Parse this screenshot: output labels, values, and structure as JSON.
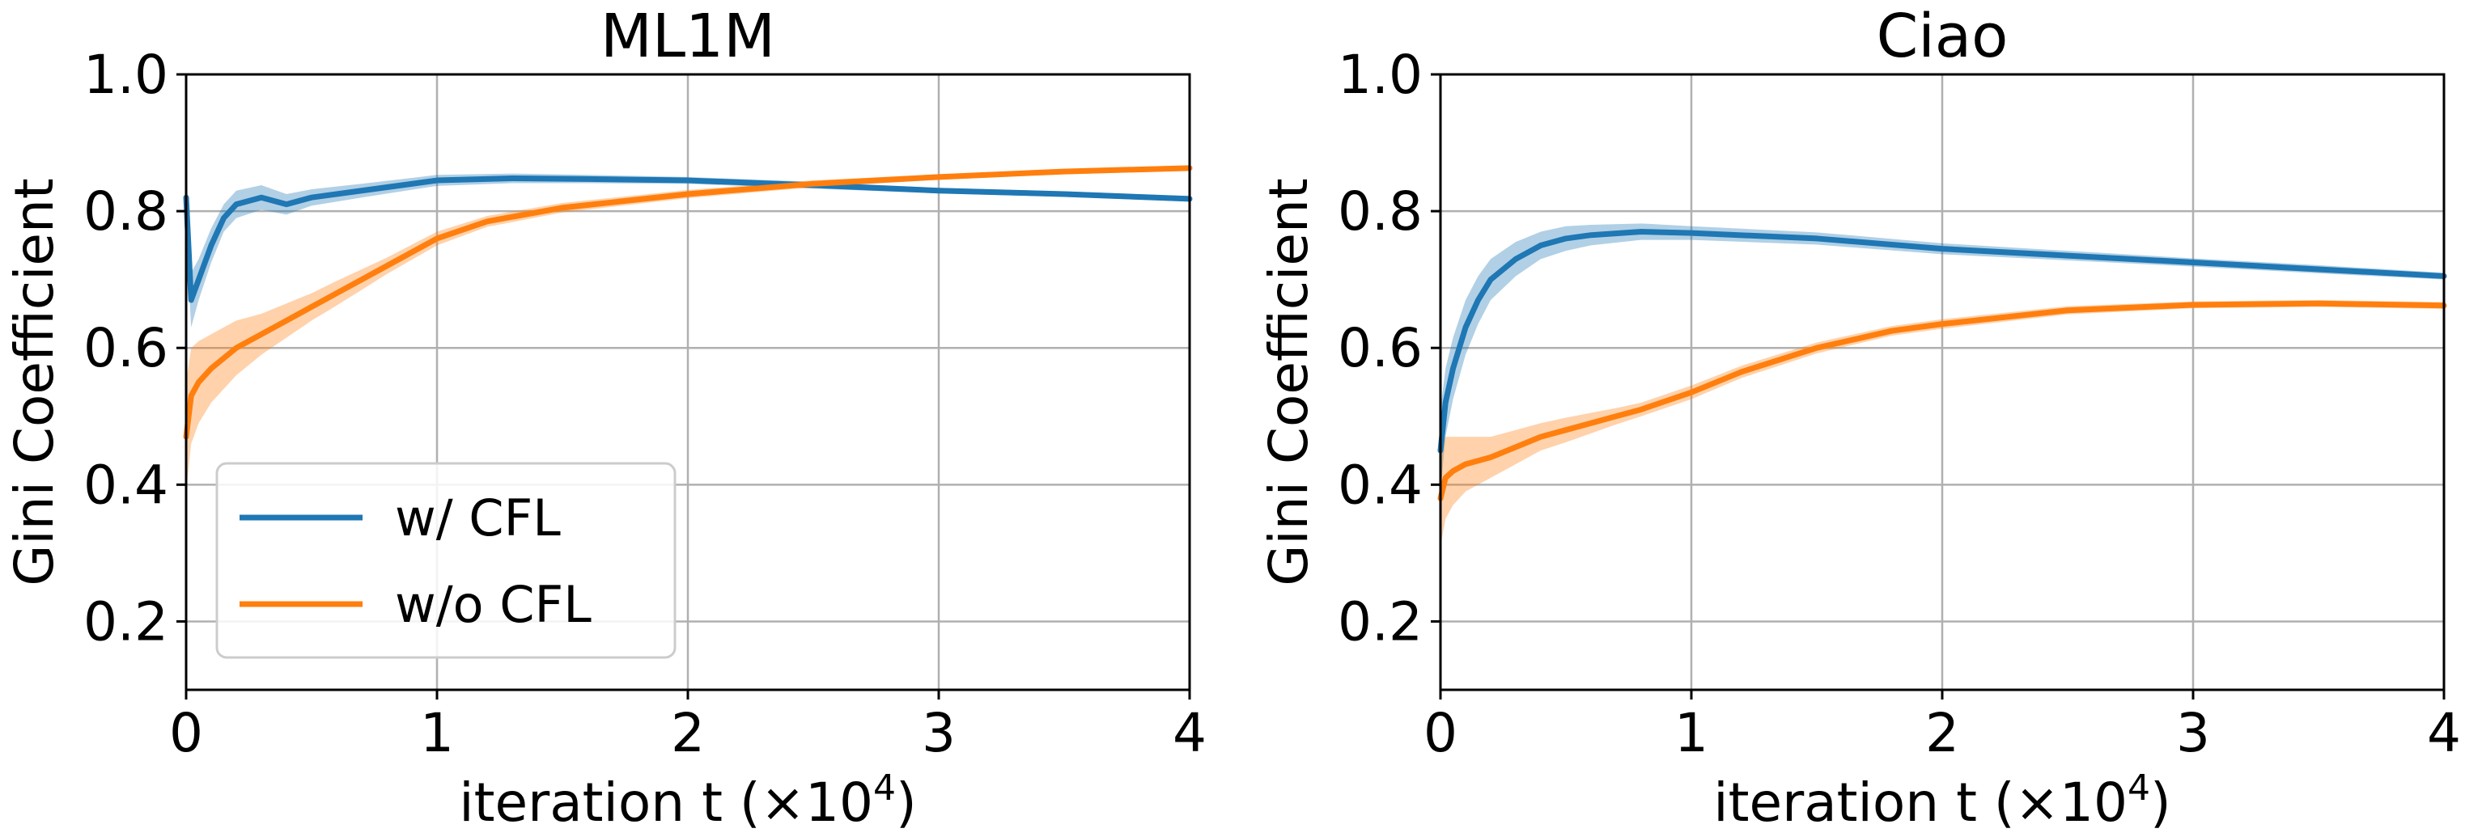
{
  "colors": {
    "series1": "#1f77b4",
    "series2": "#ff7f0e"
  },
  "chart_data": [
    {
      "type": "line",
      "title": "ML1M",
      "xlabel": "iteration t (×10",
      "xlabel_sup": "4",
      "xlabel_suffix": ")",
      "ylabel": "Gini Coefficient",
      "xlim": [
        0,
        4
      ],
      "ylim": [
        0.1,
        1.0
      ],
      "xticks": [
        0,
        1,
        2,
        3,
        4
      ],
      "xtick_labels": [
        "0",
        "1",
        "2",
        "3",
        "4"
      ],
      "yticks": [
        0.2,
        0.4,
        0.6,
        0.8,
        1.0
      ],
      "ytick_labels": [
        "0.2",
        "0.4",
        "0.6",
        "0.8",
        "1.0"
      ],
      "grid": true,
      "legend": {
        "position": "lower-left",
        "entries": [
          "w/ CFL",
          "w/o CFL"
        ]
      },
      "series": [
        {
          "name": "w/ CFL",
          "x": [
            0,
            0.02,
            0.05,
            0.1,
            0.15,
            0.2,
            0.3,
            0.4,
            0.5,
            0.7,
            1.0,
            1.3,
            1.6,
            2.0,
            2.5,
            3.0,
            3.5,
            4.0
          ],
          "y": [
            0.82,
            0.67,
            0.7,
            0.75,
            0.79,
            0.81,
            0.82,
            0.81,
            0.82,
            0.83,
            0.845,
            0.848,
            0.847,
            0.845,
            0.838,
            0.83,
            0.825,
            0.818
          ],
          "band": [
            0.05,
            0.04,
            0.03,
            0.025,
            0.02,
            0.02,
            0.018,
            0.015,
            0.012,
            0.01,
            0.008,
            0.007,
            0.006,
            0.005,
            0.005,
            0.004,
            0.004,
            0.004
          ]
        },
        {
          "name": "w/o CFL",
          "x": [
            0,
            0.02,
            0.05,
            0.1,
            0.2,
            0.3,
            0.4,
            0.5,
            0.6,
            0.7,
            0.8,
            1.0,
            1.2,
            1.5,
            2.0,
            2.5,
            3.0,
            3.5,
            4.0
          ],
          "y": [
            0.47,
            0.53,
            0.55,
            0.57,
            0.6,
            0.62,
            0.64,
            0.66,
            0.68,
            0.7,
            0.72,
            0.76,
            0.785,
            0.805,
            0.825,
            0.84,
            0.85,
            0.858,
            0.863
          ],
          "band": [
            0.08,
            0.07,
            0.06,
            0.05,
            0.04,
            0.03,
            0.025,
            0.02,
            0.018,
            0.015,
            0.012,
            0.01,
            0.008,
            0.007,
            0.006,
            0.005,
            0.004,
            0.004,
            0.004
          ]
        }
      ]
    },
    {
      "type": "line",
      "title": "Ciao",
      "xlabel": "iteration t (×10",
      "xlabel_sup": "4",
      "xlabel_suffix": ")",
      "ylabel": "Gini Coefficient",
      "xlim": [
        0,
        4
      ],
      "ylim": [
        0.1,
        1.0
      ],
      "xticks": [
        0,
        1,
        2,
        3,
        4
      ],
      "xtick_labels": [
        "0",
        "1",
        "2",
        "3",
        "4"
      ],
      "yticks": [
        0.2,
        0.4,
        0.6,
        0.8,
        1.0
      ],
      "ytick_labels": [
        "0.2",
        "0.4",
        "0.6",
        "0.8",
        "1.0"
      ],
      "grid": true,
      "series": [
        {
          "name": "w/ CFL",
          "x": [
            0,
            0.02,
            0.05,
            0.1,
            0.15,
            0.2,
            0.3,
            0.4,
            0.5,
            0.6,
            0.8,
            1.0,
            1.5,
            2.0,
            2.5,
            3.0,
            3.5,
            4.0
          ],
          "y": [
            0.45,
            0.52,
            0.57,
            0.63,
            0.67,
            0.7,
            0.73,
            0.75,
            0.76,
            0.765,
            0.77,
            0.768,
            0.76,
            0.745,
            0.735,
            0.725,
            0.715,
            0.705
          ],
          "band": [
            0.06,
            0.05,
            0.045,
            0.04,
            0.035,
            0.03,
            0.025,
            0.02,
            0.018,
            0.015,
            0.012,
            0.01,
            0.009,
            0.008,
            0.007,
            0.006,
            0.006,
            0.005
          ]
        },
        {
          "name": "w/o CFL",
          "x": [
            0,
            0.02,
            0.05,
            0.1,
            0.2,
            0.3,
            0.4,
            0.5,
            0.6,
            0.7,
            0.8,
            1.0,
            1.2,
            1.5,
            1.8,
            2.0,
            2.5,
            3.0,
            3.5,
            4.0
          ],
          "y": [
            0.38,
            0.41,
            0.42,
            0.43,
            0.44,
            0.455,
            0.47,
            0.48,
            0.49,
            0.5,
            0.51,
            0.535,
            0.565,
            0.6,
            0.625,
            0.635,
            0.655,
            0.663,
            0.665,
            0.662
          ],
          "band": [
            0.07,
            0.06,
            0.05,
            0.04,
            0.03,
            0.025,
            0.02,
            0.018,
            0.015,
            0.012,
            0.01,
            0.01,
            0.009,
            0.008,
            0.007,
            0.007,
            0.006,
            0.005,
            0.005,
            0.005
          ]
        }
      ]
    }
  ]
}
